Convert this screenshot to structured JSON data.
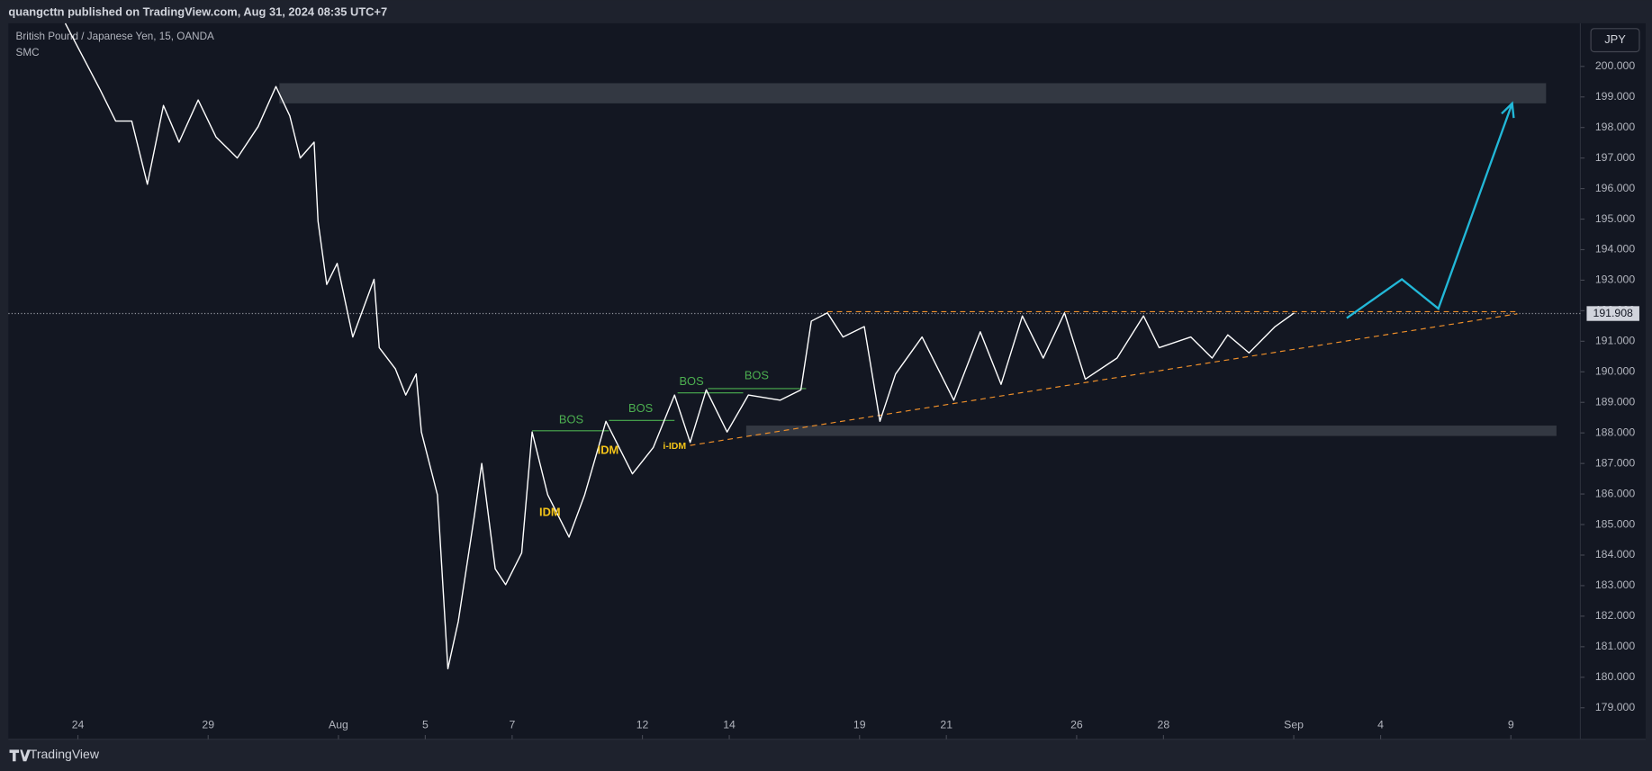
{
  "header": "quangcttn published on TradingView.com, Aug 31, 2024 08:35 UTC+7",
  "footer": "TradingView",
  "chart_data": {
    "type": "line",
    "title": "British Pound / Japanese Yen, 15, OANDA",
    "subtitle": "SMC",
    "currency": "JPY",
    "x": [
      -0.29,
      0.51,
      0.87,
      1.24,
      1.6,
      1.97,
      2.33,
      2.77,
      3.18,
      3.67,
      4.15,
      4.56,
      4.88,
      5.12,
      5.44,
      5.53,
      5.73,
      5.97,
      6.33,
      6.82,
      6.94,
      7.31,
      7.55,
      7.79,
      7.91,
      8.28,
      8.52,
      8.76,
      9.13,
      9.3,
      9.61,
      9.85,
      10.22,
      10.46,
      10.82,
      11.31,
      11.67,
      12.16,
      12.77,
      13.25,
      13.74,
      14.1,
      14.47,
      14.95,
      15.44,
      16.17,
      16.65,
      16.89,
      17.26,
      17.62,
      18.11,
      18.47,
      18.83,
      19.44,
      20.17,
      20.78,
      21.26,
      21.75,
      22.23,
      22.72,
      23.2,
      23.93,
      24.54,
      24.9,
      25.63,
      26.12,
      26.48,
      26.97,
      27.57,
      28.01
    ],
    "series": [
      {
        "color": "#ffffff",
        "values": [
          201.41,
          199.24,
          198.21,
          198.21,
          196.14,
          198.72,
          197.52,
          198.9,
          197.69,
          197.0,
          198.03,
          199.34,
          198.38,
          197.0,
          197.52,
          194.93,
          192.86,
          193.55,
          191.14,
          193.03,
          190.79,
          190.1,
          189.24,
          189.93,
          188.03,
          185.97,
          180.28,
          181.83,
          185.28,
          187.0,
          183.55,
          183.03,
          184.07,
          188.03,
          185.97,
          184.59,
          185.97,
          188.38,
          186.66,
          187.52,
          189.24,
          187.69,
          189.41,
          188.03,
          189.24,
          189.07,
          189.41,
          191.66,
          191.93,
          191.14,
          191.48,
          188.38,
          189.93,
          191.14,
          189.07,
          191.31,
          189.59,
          191.83,
          190.45,
          191.93,
          189.76,
          190.45,
          191.83,
          190.79,
          191.14,
          190.45,
          191.21,
          190.62,
          191.48,
          191.93
        ]
      }
    ],
    "projection": {
      "color": "#22b8d8",
      "x": [
        29.22,
        30.49,
        31.33,
        33.03
      ],
      "values": [
        191.76,
        193.03,
        192.07,
        198.79
      ]
    },
    "zones": [
      {
        "color": "#3a3e48",
        "x": [
          4.64,
          33.81
        ],
        "y": [
          198.79,
          199.45
        ]
      },
      {
        "color": "#3a3e48",
        "x": [
          15.39,
          34.05
        ],
        "y": [
          187.9,
          188.24
        ]
      }
    ],
    "lines": [
      {
        "color": "#f0902a",
        "dashed": true,
        "x": [
          17.26,
          33.15
        ],
        "values": [
          191.97,
          191.97
        ]
      },
      {
        "color": "#f0902a",
        "dashed": true,
        "x": [
          14.1,
          33.15
        ],
        "values": [
          187.59,
          191.9
        ]
      },
      {
        "color": "#4caf50",
        "dashed": false,
        "x": [
          10.46,
          12.23
        ],
        "values": [
          188.07,
          188.07
        ]
      },
      {
        "color": "#4caf50",
        "dashed": false,
        "x": [
          12.23,
          13.74
        ],
        "values": [
          188.41,
          188.41
        ]
      },
      {
        "color": "#4caf50",
        "dashed": false,
        "x": [
          13.81,
          15.32
        ],
        "values": [
          189.31,
          189.31
        ]
      },
      {
        "color": "#4caf50",
        "dashed": false,
        "x": [
          14.51,
          16.77
        ],
        "values": [
          189.45,
          189.45
        ]
      }
    ],
    "annotations": [
      {
        "text": "BOS",
        "color": "#4caf50",
        "x": 11.36,
        "y": 188.41
      },
      {
        "text": "BOS",
        "color": "#4caf50",
        "x": 12.96,
        "y": 188.79
      },
      {
        "text": "BOS",
        "color": "#4caf50",
        "x": 14.13,
        "y": 189.66
      },
      {
        "text": "BOS",
        "color": "#4caf50",
        "x": 15.63,
        "y": 189.86
      },
      {
        "text": "IDM",
        "color": "#f5c518",
        "x": 12.21,
        "y": 187.41
      },
      {
        "text": "IDM",
        "color": "#f5c518",
        "x": 10.87,
        "y": 185.38
      },
      {
        "text": "i-IDM",
        "color": "#f5c518",
        "x": 13.74,
        "y": 187.55
      }
    ],
    "current_price": {
      "value": 191.908,
      "label": "191.908"
    },
    "xlim": [
      -1.6,
      34.6
    ],
    "ylim": [
      177.97,
      201.41
    ],
    "xticks": [
      {
        "value": 0,
        "label": "24"
      },
      {
        "value": 3,
        "label": "29"
      },
      {
        "value": 6,
        "label": "Aug"
      },
      {
        "value": 8,
        "label": "5"
      },
      {
        "value": 10,
        "label": "7"
      },
      {
        "value": 13,
        "label": "12"
      },
      {
        "value": 15,
        "label": "14"
      },
      {
        "value": 18,
        "label": "19"
      },
      {
        "value": 20,
        "label": "21"
      },
      {
        "value": 23,
        "label": "26"
      },
      {
        "value": 25,
        "label": "28"
      },
      {
        "value": 28,
        "label": "Sep"
      },
      {
        "value": 30,
        "label": "4"
      },
      {
        "value": 33,
        "label": "9"
      }
    ],
    "yticks": [
      {
        "value": 179,
        "label": "179.000"
      },
      {
        "value": 180,
        "label": "180.000"
      },
      {
        "value": 181,
        "label": "181.000"
      },
      {
        "value": 182,
        "label": "182.000"
      },
      {
        "value": 183,
        "label": "183.000"
      },
      {
        "value": 184,
        "label": "184.000"
      },
      {
        "value": 185,
        "label": "185.000"
      },
      {
        "value": 186,
        "label": "186.000"
      },
      {
        "value": 187,
        "label": "187.000"
      },
      {
        "value": 188,
        "label": "188.000"
      },
      {
        "value": 189,
        "label": "189.000"
      },
      {
        "value": 190,
        "label": "190.000"
      },
      {
        "value": 191,
        "label": "191.000"
      },
      {
        "value": 192,
        "label": "192.000"
      },
      {
        "value": 193,
        "label": "193.000"
      },
      {
        "value": 194,
        "label": "194.000"
      },
      {
        "value": 195,
        "label": "195.000"
      },
      {
        "value": 196,
        "label": "196.000"
      },
      {
        "value": 197,
        "label": "197.000"
      },
      {
        "value": 198,
        "label": "198.000"
      },
      {
        "value": 199,
        "label": "199.000"
      },
      {
        "value": 200,
        "label": "200.000"
      }
    ]
  }
}
